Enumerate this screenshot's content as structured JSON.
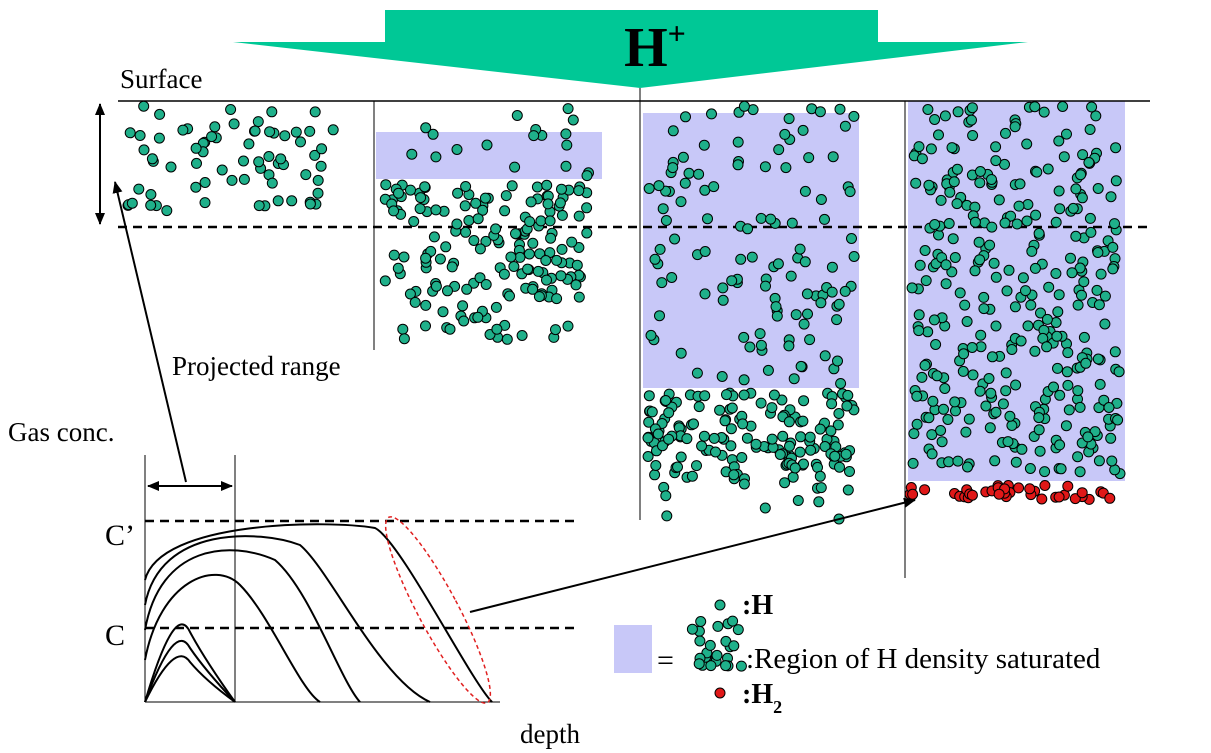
{
  "beam": {
    "symbol": "H",
    "charge": "+"
  },
  "surface_label": "Surface",
  "projected_range_label": "Projected range",
  "graph": {
    "y_label": "Gas conc.",
    "c_prime_label": "C’",
    "c_label": "C",
    "x_label": "depth"
  },
  "legend": {
    "h_label": ":H",
    "equals": "=",
    "saturated_label": ":Region of H density saturated",
    "h2_label": ":H",
    "h2_subscript": "2"
  }
}
